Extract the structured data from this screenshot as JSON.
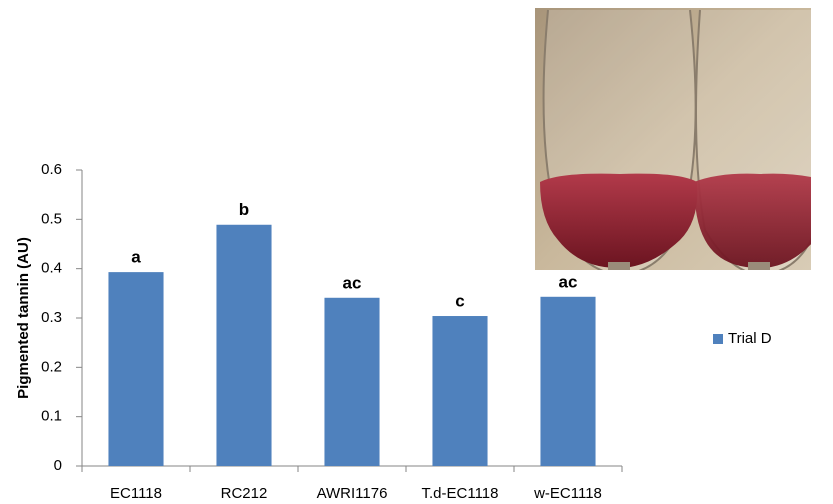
{
  "chart_data": {
    "type": "bar",
    "y_axis_label": "Pigmented tannin (AU)",
    "categories": [
      "EC1118",
      "RC212",
      "AWRI1176",
      "T.d-EC1118",
      "w-EC1118"
    ],
    "series": [
      {
        "name": "Trial D",
        "color": "#4f81bd",
        "values": [
          0.393,
          0.489,
          0.341,
          0.304,
          0.343
        ]
      }
    ],
    "significance_letters": [
      "a",
      "b",
      "ac",
      "c",
      "ac"
    ],
    "ylim": [
      0,
      0.6
    ],
    "yticks": [
      0,
      0.1,
      0.2,
      0.3,
      0.4,
      0.5,
      0.6
    ],
    "grid": false,
    "legend": "right"
  }
}
